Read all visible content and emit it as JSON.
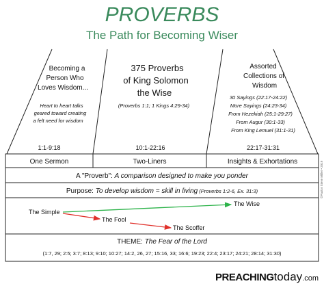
{
  "header": {
    "title": "PROVERBS",
    "subtitle": "The Path for Becoming Wiser"
  },
  "columns": [
    {
      "heading": [
        "Becoming a",
        "Person Who",
        "Loves Wisdom..."
      ],
      "notes": [
        "Heart to heart talks",
        "geared toward creating",
        "a felt need for  wisdom"
      ],
      "range": "1:1-9:18",
      "label": "One Sermon"
    },
    {
      "heading": [
        "375 Proverbs",
        "of King Solomon",
        "the Wise"
      ],
      "notes": [
        "(Proverbs 1:1; 1 Kings 4:29-34)"
      ],
      "range": "10:1-22:16",
      "label": "Two-Liners"
    },
    {
      "heading": [
        "Assorted",
        "Collections of",
        "Wisdom"
      ],
      "notes": [
        "30 Sayings (22:17-24:22)",
        "More Sayings (24:23-34)",
        "From Hezekiah (25:1-29:27)",
        "From Augur (30:1-33)",
        "From King Lemuel (31:1-31)"
      ],
      "range": "22:17-31:31",
      "label": "Insights & Exhortations"
    }
  ],
  "definition": {
    "term": "A \"Proverb\": ",
    "text": "A comparison designed to make you ponder"
  },
  "purpose": {
    "label": "Purpose: ",
    "text": "To develop wisdom = skill in living",
    "refs": " (Proverbs 1:2-6, Ex. 31:3)"
  },
  "path": {
    "start": "The Simple",
    "up": "The Wise",
    "down": [
      "The Fool",
      "The Scoffer"
    ]
  },
  "theme": {
    "label": "THEME: ",
    "text": "The Fear of the Lord",
    "refs": "(1:7, 29; 2:5; 3:7; 8:13; 9:10; 10:27; 14:2, 26, 27; 15:16, 33; 16:6; 19:23; 22:4; 23:17; 24:21; 28:14; 31:30)"
  },
  "copyright": "©Pastor Steve Miller • 2019",
  "logo": {
    "bold": "PREACHING",
    "light": "today",
    "suffix": ".com"
  }
}
